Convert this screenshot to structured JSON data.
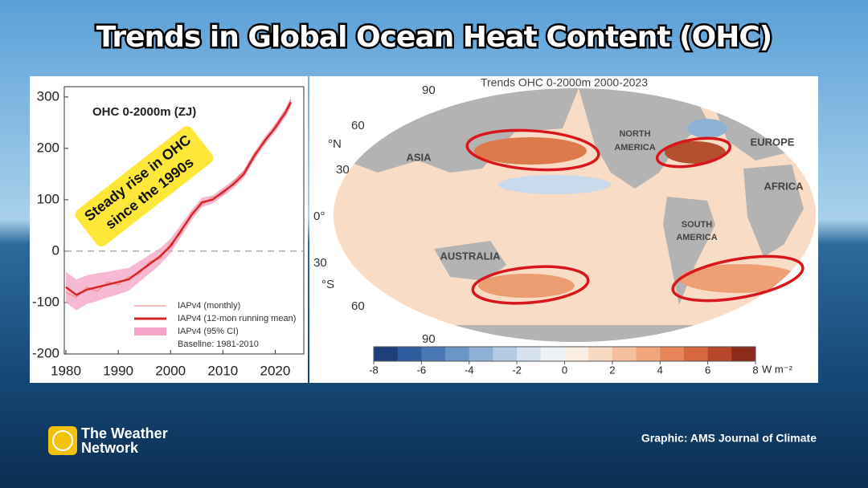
{
  "title": "Trends in Global Ocean Heat Content (OHC)",
  "chart_data": {
    "type": "line",
    "title": "OHC  0-2000m (ZJ)",
    "annotation": [
      "Steady rise in OHC",
      "since the 1990s"
    ],
    "note": "Baseline: 1981-2010",
    "x": [
      1980,
      1982,
      1984,
      1986,
      1988,
      1990,
      1992,
      1994,
      1996,
      1998,
      2000,
      2002,
      2004,
      2006,
      2008,
      2010,
      2012,
      2014,
      2016,
      2018,
      2020,
      2022,
      2023
    ],
    "series": [
      {
        "name": "IAPv4 (monthly)",
        "color": "#f08080",
        "values": [
          -80,
          -90,
          -70,
          -78,
          -60,
          -65,
          -50,
          -45,
          -20,
          -15,
          15,
          35,
          75,
          90,
          105,
          110,
          135,
          155,
          190,
          210,
          245,
          275,
          295
        ]
      },
      {
        "name": "IAPv4 (12-mon running mean)",
        "color": "#d62728",
        "values": [
          -70,
          -85,
          -75,
          -70,
          -65,
          -60,
          -55,
          -40,
          -25,
          -10,
          10,
          40,
          70,
          95,
          100,
          115,
          130,
          150,
          185,
          215,
          240,
          270,
          290
        ]
      },
      {
        "name": "IAPv4 (95% CI)",
        "color": "#f4a6c8",
        "lower": [
          -100,
          -115,
          -103,
          -97,
          -90,
          -84,
          -77,
          -60,
          -43,
          -26,
          -4,
          28,
          60,
          86,
          92,
          107,
          122,
          142,
          177,
          207,
          232,
          262,
          280
        ],
        "upper": [
          -40,
          -55,
          -47,
          -43,
          -40,
          -36,
          -33,
          -20,
          -7,
          6,
          24,
          52,
          80,
          104,
          108,
          123,
          138,
          158,
          193,
          223,
          248,
          278,
          300
        ]
      }
    ],
    "reference_line": 0,
    "xlim": [
      1980,
      2025
    ],
    "xticks": [
      1980,
      1990,
      2000,
      2010,
      2020
    ],
    "ylim": [
      -200,
      320
    ],
    "yticks": [
      -200,
      -100,
      0,
      100,
      200,
      300
    ]
  },
  "map": {
    "title": "Trends OHC 0-2000m 2000-2023",
    "lat_labels": [
      "90",
      "60",
      "°N",
      "30",
      "0°",
      "30",
      "°S",
      "60",
      "90"
    ],
    "regions": [
      "ASIA",
      "NORTH",
      "AMERICA",
      "EUROPE",
      "AFRICA",
      "SOUTH",
      "AMERICA",
      "AUSTRALIA"
    ],
    "colorbar": {
      "lim": [
        -8,
        8
      ],
      "ticks": [
        -8,
        -6,
        -4,
        -2,
        0,
        2,
        4,
        6,
        8
      ],
      "unit": "W m⁻²",
      "colors": [
        "#1f3f7a",
        "#2f5c9e",
        "#4a78b5",
        "#6a95c6",
        "#8fb1d6",
        "#b4cce3",
        "#d6e3ef",
        "#eef2f6",
        "#fbeee4",
        "#f8d9c2",
        "#f5c09e",
        "#f0a57a",
        "#e6865a",
        "#d6683f",
        "#b8462a",
        "#8c2b1c"
      ]
    }
  },
  "branding": [
    "The Weather",
    "Network"
  ],
  "credit": "Graphic: AMS Journal of Climate"
}
